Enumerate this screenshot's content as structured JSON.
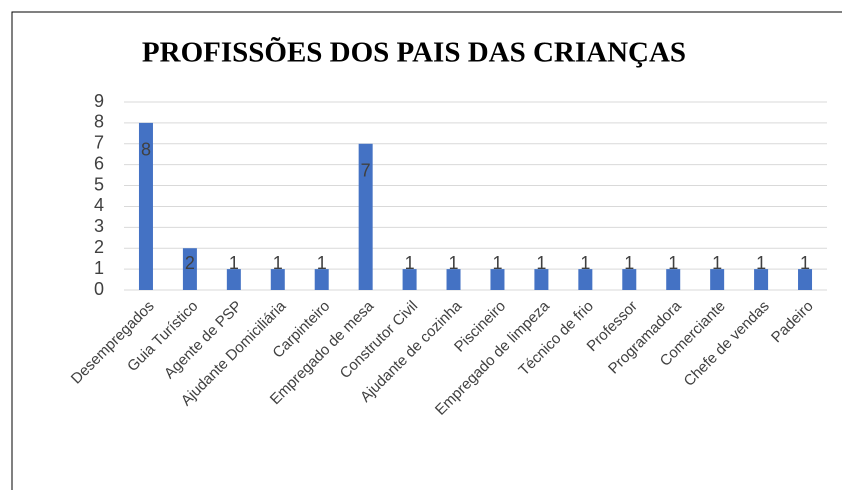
{
  "chart_data": {
    "type": "bar",
    "title": "PROFISSÕES DOS PAIS DAS CRIANÇAS",
    "categories": [
      "Desempregados",
      "Guia Turístico",
      "Agente de PSP",
      "Ajudante Domiciliária",
      "Carpinteiro",
      "Empregado de mesa",
      "Construtor Civil",
      "Ajudante de cozinha",
      "Piscineiro",
      "Empregado de limpeza",
      "Técnico de frio",
      "Professor",
      "Programadora",
      "Comerciante",
      "Chefe de vendas",
      "Padeiro"
    ],
    "values": [
      8,
      2,
      1,
      1,
      1,
      7,
      1,
      1,
      1,
      1,
      1,
      1,
      1,
      1,
      1,
      1
    ],
    "color": "#4472c4",
    "ylim": [
      0,
      9
    ],
    "yticks": [
      0,
      1,
      2,
      3,
      4,
      5,
      6,
      7,
      8,
      9
    ],
    "grid": true
  }
}
